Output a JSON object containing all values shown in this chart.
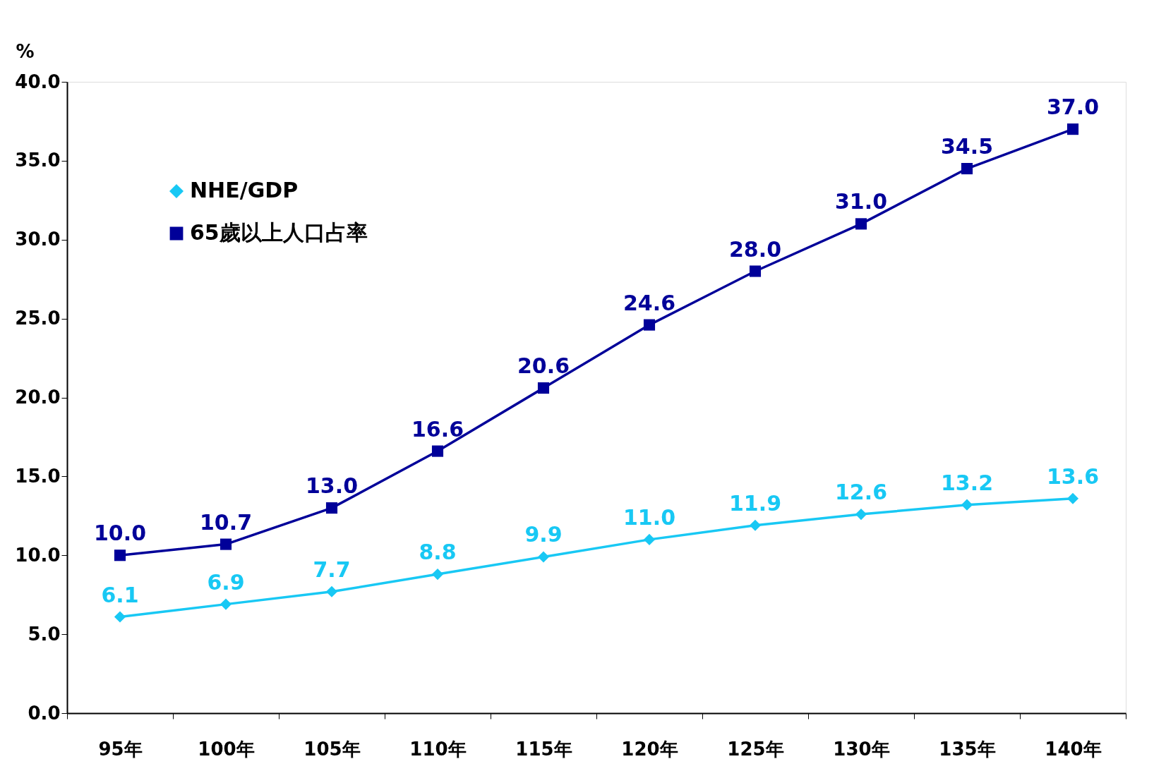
{
  "chart_data": {
    "type": "line",
    "ylabel": "%",
    "categories": [
      "95年",
      "100年",
      "105年",
      "110年",
      "115年",
      "120年",
      "125年",
      "130年",
      "135年",
      "140年"
    ],
    "series": [
      {
        "name": "NHE/GDP",
        "color": "#18c8f4",
        "marker": "diamond",
        "values": [
          6.1,
          6.9,
          7.7,
          8.8,
          9.9,
          11.0,
          11.9,
          12.6,
          13.2,
          13.6
        ],
        "value_labels": [
          "6.1",
          "6.9",
          "7.7",
          "8.8",
          "9.9",
          "11.0",
          "11.9",
          "12.6",
          "13.2",
          "13.6"
        ]
      },
      {
        "name": "65歲以上人口占率",
        "color": "#000099",
        "marker": "square",
        "values": [
          10.0,
          10.7,
          13.0,
          16.6,
          20.6,
          24.6,
          28.0,
          31.0,
          34.5,
          37.0
        ],
        "value_labels": [
          "10.0",
          "10.7",
          "13.0",
          "16.6",
          "20.6",
          "24.6",
          "28.0",
          "31.0",
          "34.5",
          "37.0"
        ]
      }
    ],
    "ylim": [
      0,
      40
    ],
    "yticks": [
      {
        "value": 0,
        "label": "0.0"
      },
      {
        "value": 5,
        "label": "5.0"
      },
      {
        "value": 10,
        "label": "10.0"
      },
      {
        "value": 15,
        "label": "15.0"
      },
      {
        "value": 20,
        "label": "20.0"
      },
      {
        "value": 25,
        "label": "25.0"
      },
      {
        "value": 30,
        "label": "30.0"
      },
      {
        "value": 35,
        "label": "35.0"
      },
      {
        "value": 40,
        "label": "40.0"
      }
    ],
    "grid": false,
    "legend": "top left"
  }
}
